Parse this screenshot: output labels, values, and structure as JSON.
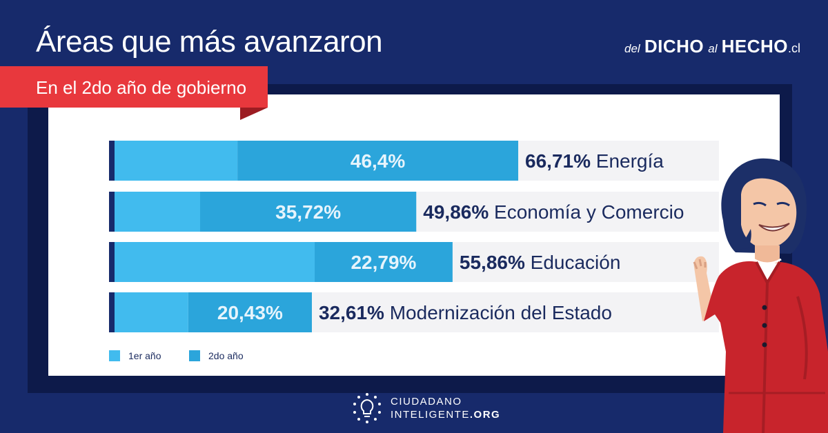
{
  "header": {
    "title": "Áreas que más avanzaron",
    "subtitle": "En el 2do año de gobierno"
  },
  "brand": {
    "part1": "del",
    "part2": "DICHO",
    "part3": "al",
    "part4": "HECHO",
    "part5": ".cl"
  },
  "footer": {
    "org_line1": "CIUDADANO",
    "org_line2": "INTELIGENTE",
    "org_suffix": ".ORG"
  },
  "colors": {
    "background": "#172a6b",
    "accent_red": "#e8383d",
    "year1": "#41bbee",
    "year2": "#2ba5db",
    "track": "#f3f3f5",
    "text_dark": "#1a2a5e"
  },
  "chart_data": {
    "type": "bar",
    "orientation": "horizontal",
    "stacked": true,
    "xlim": [
      0,
      100
    ],
    "categories": [
      "Energía",
      "Economía y Comercio",
      "Educación",
      "Modernización del Estado"
    ],
    "totals": [
      66.71,
      49.86,
      55.86,
      32.61
    ],
    "total_labels": [
      "66,71%",
      "49,86%",
      "55,86%",
      "32,61%"
    ],
    "series": [
      {
        "name": "1er año",
        "values": [
          20.31,
          14.14,
          33.07,
          12.18
        ]
      },
      {
        "name": "2do año",
        "values": [
          46.4,
          35.72,
          22.79,
          20.43
        ],
        "labels": [
          "46,4%",
          "35,72%",
          "22,79%",
          "20,43%"
        ]
      }
    ]
  }
}
